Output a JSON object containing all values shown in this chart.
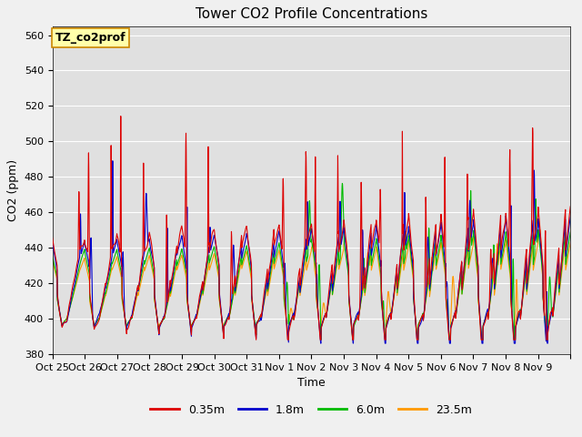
{
  "title": "Tower CO2 Profile Concentrations",
  "xlabel": "Time",
  "ylabel": "CO2 (ppm)",
  "ylim": [
    380,
    565
  ],
  "yticks": [
    380,
    400,
    420,
    440,
    460,
    480,
    500,
    520,
    540,
    560
  ],
  "xtick_labels": [
    "Oct 25",
    "Oct 26",
    "Oct 27",
    "Oct 28",
    "Oct 29",
    "Oct 30",
    "Oct 31",
    "Nov 1",
    "Nov 2",
    "Nov 3",
    "Nov 4",
    "Nov 5",
    "Nov 6",
    "Nov 7",
    "Nov 8",
    "Nov 9"
  ],
  "colors": {
    "0.35m": "#dd0000",
    "1.8m": "#0000cc",
    "6.0m": "#00bb00",
    "23.5m": "#ff9900"
  },
  "legend_label": "TZ_co2prof",
  "fig_bg": "#f0f0f0",
  "axes_bg": "#e0e0e0",
  "title_fontsize": 11,
  "label_fontsize": 9,
  "tick_fontsize": 8,
  "linewidth": 0.8
}
